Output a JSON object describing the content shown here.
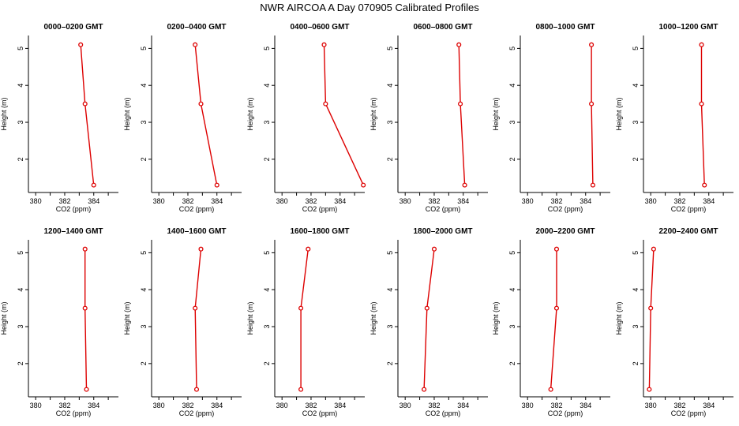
{
  "title": "NWR AIRCOA A  Day 070905  Calibrated Profiles",
  "chart_data": [
    {
      "type": "line",
      "title": "0000–0200 GMT",
      "xlabel": "CO2 (ppm)",
      "ylabel": "Height (m)",
      "xlim": [
        379.5,
        385.7
      ],
      "ylim": [
        1.1,
        5.35
      ],
      "xticks": [
        380,
        382,
        384
      ],
      "yticks": [
        2,
        3,
        4,
        5
      ],
      "series": [
        {
          "name": "profile",
          "x": [
            384.0,
            383.4,
            383.1
          ],
          "y": [
            1.3,
            3.5,
            5.1
          ]
        }
      ]
    },
    {
      "type": "line",
      "title": "0200–0400 GMT",
      "xlabel": "CO2 (ppm)",
      "ylabel": "Height (m)",
      "xlim": [
        379.5,
        385.7
      ],
      "ylim": [
        1.1,
        5.35
      ],
      "xticks": [
        380,
        382,
        384
      ],
      "yticks": [
        2,
        3,
        4,
        5
      ],
      "series": [
        {
          "name": "profile",
          "x": [
            384.0,
            382.9,
            382.5
          ],
          "y": [
            1.3,
            3.5,
            5.1
          ]
        }
      ]
    },
    {
      "type": "line",
      "title": "0400–0600 GMT",
      "xlabel": "CO2 (ppm)",
      "ylabel": "Height (m)",
      "xlim": [
        379.5,
        385.7
      ],
      "ylim": [
        1.1,
        5.35
      ],
      "xticks": [
        380,
        382,
        384
      ],
      "yticks": [
        2,
        3,
        4,
        5
      ],
      "series": [
        {
          "name": "profile",
          "x": [
            385.6,
            383.0,
            382.9
          ],
          "y": [
            1.3,
            3.5,
            5.1
          ]
        }
      ]
    },
    {
      "type": "line",
      "title": "0600–0800 GMT",
      "xlabel": "CO2 (ppm)",
      "ylabel": "Height (m)",
      "xlim": [
        379.5,
        385.7
      ],
      "ylim": [
        1.1,
        5.35
      ],
      "xticks": [
        380,
        382,
        384
      ],
      "yticks": [
        2,
        3,
        4,
        5
      ],
      "series": [
        {
          "name": "profile",
          "x": [
            384.1,
            383.8,
            383.7
          ],
          "y": [
            1.3,
            3.5,
            5.1
          ]
        }
      ]
    },
    {
      "type": "line",
      "title": "0800–1000 GMT",
      "xlabel": "CO2 (ppm)",
      "ylabel": "Height (m)",
      "xlim": [
        379.5,
        385.7
      ],
      "ylim": [
        1.1,
        5.35
      ],
      "xticks": [
        380,
        382,
        384
      ],
      "yticks": [
        2,
        3,
        4,
        5
      ],
      "series": [
        {
          "name": "profile",
          "x": [
            384.5,
            384.4,
            384.4
          ],
          "y": [
            1.3,
            3.5,
            5.1
          ]
        }
      ]
    },
    {
      "type": "line",
      "title": "1000–1200 GMT",
      "xlabel": "CO2 (ppm)",
      "ylabel": "Height (m)",
      "xlim": [
        379.5,
        385.7
      ],
      "ylim": [
        1.1,
        5.35
      ],
      "xticks": [
        380,
        382,
        384
      ],
      "yticks": [
        2,
        3,
        4,
        5
      ],
      "series": [
        {
          "name": "profile",
          "x": [
            383.7,
            383.5,
            383.5
          ],
          "y": [
            1.3,
            3.5,
            5.1
          ]
        }
      ]
    },
    {
      "type": "line",
      "title": "1200–1400 GMT",
      "xlabel": "CO2 (ppm)",
      "ylabel": "Height (m)",
      "xlim": [
        379.5,
        385.7
      ],
      "ylim": [
        1.1,
        5.35
      ],
      "xticks": [
        380,
        382,
        384
      ],
      "yticks": [
        2,
        3,
        4,
        5
      ],
      "series": [
        {
          "name": "profile",
          "x": [
            383.5,
            383.4,
            383.4
          ],
          "y": [
            1.3,
            3.5,
            5.1
          ]
        }
      ]
    },
    {
      "type": "line",
      "title": "1400–1600 GMT",
      "xlabel": "CO2 (ppm)",
      "ylabel": "Height (m)",
      "xlim": [
        379.5,
        385.7
      ],
      "ylim": [
        1.1,
        5.35
      ],
      "xticks": [
        380,
        382,
        384
      ],
      "yticks": [
        2,
        3,
        4,
        5
      ],
      "series": [
        {
          "name": "profile",
          "x": [
            382.6,
            382.5,
            382.9
          ],
          "y": [
            1.3,
            3.5,
            5.1
          ]
        }
      ]
    },
    {
      "type": "line",
      "title": "1600–1800 GMT",
      "xlabel": "CO2 (ppm)",
      "ylabel": "Height (m)",
      "xlim": [
        379.5,
        385.7
      ],
      "ylim": [
        1.1,
        5.35
      ],
      "xticks": [
        380,
        382,
        384
      ],
      "yticks": [
        2,
        3,
        4,
        5
      ],
      "series": [
        {
          "name": "profile",
          "x": [
            381.3,
            381.3,
            381.8
          ],
          "y": [
            1.3,
            3.5,
            5.1
          ]
        }
      ]
    },
    {
      "type": "line",
      "title": "1800–2000 GMT",
      "xlabel": "CO2 (ppm)",
      "ylabel": "Height (m)",
      "xlim": [
        379.5,
        385.7
      ],
      "ylim": [
        1.1,
        5.35
      ],
      "xticks": [
        380,
        382,
        384
      ],
      "yticks": [
        2,
        3,
        4,
        5
      ],
      "series": [
        {
          "name": "profile",
          "x": [
            381.3,
            381.5,
            382.0
          ],
          "y": [
            1.3,
            3.5,
            5.1
          ]
        }
      ]
    },
    {
      "type": "line",
      "title": "2000–2200 GMT",
      "xlabel": "CO2 (ppm)",
      "ylabel": "Height (m)",
      "xlim": [
        379.5,
        385.7
      ],
      "ylim": [
        1.1,
        5.35
      ],
      "xticks": [
        380,
        382,
        384
      ],
      "yticks": [
        2,
        3,
        4,
        5
      ],
      "series": [
        {
          "name": "profile",
          "x": [
            381.6,
            382.0,
            382.0
          ],
          "y": [
            1.3,
            3.5,
            5.1
          ]
        }
      ]
    },
    {
      "type": "line",
      "title": "2200–2400 GMT",
      "xlabel": "CO2 (ppm)",
      "ylabel": "Height (m)",
      "xlim": [
        379.5,
        385.7
      ],
      "ylim": [
        1.1,
        5.35
      ],
      "xticks": [
        380,
        382,
        384
      ],
      "yticks": [
        2,
        3,
        4,
        5
      ],
      "series": [
        {
          "name": "profile",
          "x": [
            379.9,
            380.0,
            380.2
          ],
          "y": [
            1.3,
            3.5,
            5.1
          ]
        }
      ]
    }
  ],
  "colors": {
    "line": "#dd0000",
    "axis": "#000000"
  }
}
